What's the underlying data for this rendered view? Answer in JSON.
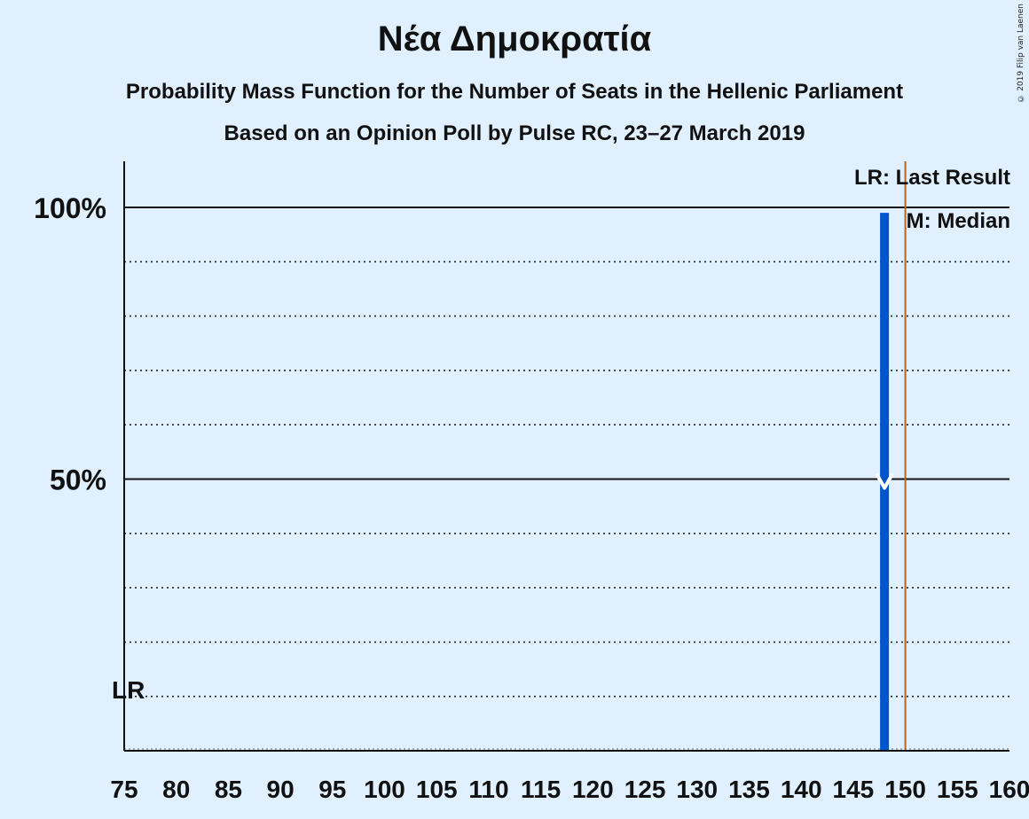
{
  "chart_data": {
    "type": "bar",
    "title": "Νέα Δημοκρατία",
    "subtitle": "Probability Mass Function for the Number of Seats in the Hellenic Parliament",
    "subtitle2": "Based on an Opinion Poll by Pulse RC, 23–27 March 2019",
    "copyright": "© 2019 Filip van Laenen",
    "xlim": [
      75,
      160
    ],
    "ylim": [
      0,
      110
    ],
    "x_ticks": [
      75,
      80,
      85,
      90,
      95,
      100,
      105,
      110,
      115,
      120,
      125,
      130,
      135,
      140,
      145,
      150,
      155,
      160
    ],
    "y_ticks": [
      {
        "value": 50,
        "label": "50%"
      },
      {
        "value": 100,
        "label": "100%"
      }
    ],
    "grid": {
      "major": [
        50,
        100
      ],
      "minor": [
        10,
        20,
        30,
        40,
        60,
        70,
        80,
        90
      ]
    },
    "series": [
      {
        "color": "#0055cc",
        "points": [
          {
            "x": 148,
            "y": 99
          }
        ]
      }
    ],
    "median": {
      "x": 148,
      "y": 50,
      "marker": "M"
    },
    "last_result": {
      "x": 150,
      "color": "#b5651d",
      "marker": "LR"
    },
    "legend": {
      "last_result": "LR: Last Result",
      "median": "M: Median",
      "placement": "top-right"
    }
  }
}
